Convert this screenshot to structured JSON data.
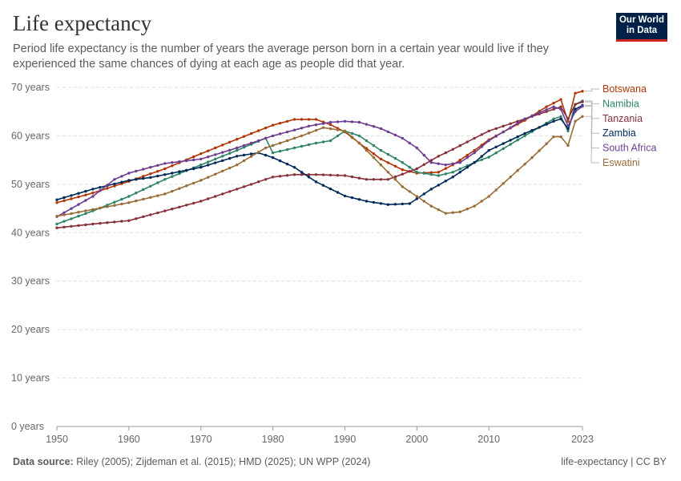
{
  "header": {
    "title": "Life expectancy",
    "subtitle": "Period life expectancy is the number of years the average person born in a certain year would live if they experienced the same chances of dying at each age as people did that year."
  },
  "logo": {
    "line1": "Our World",
    "line2": "in Data"
  },
  "footer": {
    "source_label": "Data source:",
    "source_text": " Riley (2005); Zijdeman et al. (2015); HMD (2025); UN WPP (2024)",
    "right_text": "life-expectancy | CC BY"
  },
  "chart_data": {
    "type": "line",
    "title": "Life expectancy",
    "xlabel": "",
    "ylabel": "",
    "xlim": [
      1950,
      2023
    ],
    "ylim": [
      0,
      70
    ],
    "x_ticks": [
      "1950",
      "1960",
      "1970",
      "1980",
      "1990",
      "2000",
      "2010",
      "2023"
    ],
    "y_ticks": [
      "0 years",
      "10 years",
      "20 years",
      "30 years",
      "40 years",
      "50 years",
      "60 years",
      "70 years"
    ],
    "grid": true,
    "legend_placement": "right",
    "series": [
      {
        "name": "Botswana",
        "color": "#b13507",
        "points": [
          [
            1950,
            46.2
          ],
          [
            1955,
            48.2
          ],
          [
            1960,
            50.6
          ],
          [
            1965,
            53.2
          ],
          [
            1970,
            56.3
          ],
          [
            1975,
            59.3
          ],
          [
            1980,
            62.2
          ],
          [
            1983,
            63.4
          ],
          [
            1986,
            63.4
          ],
          [
            1988,
            62.3
          ],
          [
            1990,
            60.8
          ],
          [
            1992,
            58.5
          ],
          [
            1995,
            55.2
          ],
          [
            1998,
            53.0
          ],
          [
            2000,
            52.3
          ],
          [
            2003,
            52.5
          ],
          [
            2005,
            54.0
          ],
          [
            2008,
            57.0
          ],
          [
            2010,
            59.2
          ],
          [
            2015,
            63.2
          ],
          [
            2018,
            66.0
          ],
          [
            2020,
            67.5
          ],
          [
            2021,
            63.0
          ],
          [
            2022,
            68.8
          ],
          [
            2023,
            69.2
          ]
        ]
      },
      {
        "name": "Namibia",
        "color": "#2c8465",
        "points": [
          [
            1950,
            41.8
          ],
          [
            1955,
            44.5
          ],
          [
            1960,
            47.5
          ],
          [
            1965,
            51.0
          ],
          [
            1970,
            54.0
          ],
          [
            1975,
            57.0
          ],
          [
            1979,
            59.5
          ],
          [
            1980,
            56.5
          ],
          [
            1983,
            57.5
          ],
          [
            1986,
            58.5
          ],
          [
            1988,
            59.0
          ],
          [
            1990,
            61.0
          ],
          [
            1992,
            60.0
          ],
          [
            1995,
            57.0
          ],
          [
            1998,
            54.5
          ],
          [
            2000,
            52.5
          ],
          [
            2003,
            51.8
          ],
          [
            2005,
            52.5
          ],
          [
            2008,
            54.5
          ],
          [
            2010,
            55.6
          ],
          [
            2015,
            60.0
          ],
          [
            2019,
            63.5
          ],
          [
            2020,
            64.0
          ],
          [
            2021,
            61.0
          ],
          [
            2022,
            66.5
          ],
          [
            2023,
            67.2
          ]
        ]
      },
      {
        "name": "Tanzania",
        "color": "#883039",
        "points": [
          [
            1950,
            41.0
          ],
          [
            1955,
            41.8
          ],
          [
            1960,
            42.5
          ],
          [
            1965,
            44.5
          ],
          [
            1970,
            46.5
          ],
          [
            1975,
            49.0
          ],
          [
            1980,
            51.5
          ],
          [
            1983,
            52.0
          ],
          [
            1986,
            52.0
          ],
          [
            1990,
            51.8
          ],
          [
            1993,
            51.0
          ],
          [
            1996,
            51.0
          ],
          [
            2000,
            53.2
          ],
          [
            2003,
            55.8
          ],
          [
            2005,
            57.2
          ],
          [
            2008,
            59.5
          ],
          [
            2010,
            61.0
          ],
          [
            2015,
            63.5
          ],
          [
            2018,
            65.0
          ],
          [
            2020,
            66.0
          ],
          [
            2021,
            63.5
          ],
          [
            2022,
            66.5
          ],
          [
            2023,
            67.0
          ]
        ]
      },
      {
        "name": "Zambia",
        "color": "#00295b",
        "points": [
          [
            1950,
            46.8
          ],
          [
            1955,
            49.0
          ],
          [
            1960,
            50.8
          ],
          [
            1963,
            51.4
          ],
          [
            1965,
            52.0
          ],
          [
            1970,
            53.5
          ],
          [
            1975,
            55.8
          ],
          [
            1978,
            56.5
          ],
          [
            1980,
            55.5
          ],
          [
            1983,
            53.5
          ],
          [
            1986,
            50.5
          ],
          [
            1990,
            47.6
          ],
          [
            1993,
            46.5
          ],
          [
            1996,
            45.8
          ],
          [
            1999,
            46.0
          ],
          [
            2002,
            49.0
          ],
          [
            2005,
            51.5
          ],
          [
            2008,
            54.5
          ],
          [
            2010,
            57.0
          ],
          [
            2015,
            60.5
          ],
          [
            2019,
            63.0
          ],
          [
            2020,
            63.5
          ],
          [
            2021,
            61.5
          ],
          [
            2022,
            65.5
          ],
          [
            2023,
            66.3
          ]
        ]
      },
      {
        "name": "South Africa",
        "color": "#6d3e91",
        "points": [
          [
            1950,
            43.3
          ],
          [
            1955,
            47.5
          ],
          [
            1958,
            51.0
          ],
          [
            1960,
            52.3
          ],
          [
            1965,
            54.3
          ],
          [
            1970,
            55.2
          ],
          [
            1975,
            57.5
          ],
          [
            1980,
            60.0
          ],
          [
            1985,
            62.0
          ],
          [
            1988,
            62.8
          ],
          [
            1990,
            63.0
          ],
          [
            1992,
            62.8
          ],
          [
            1995,
            61.5
          ],
          [
            1998,
            59.5
          ],
          [
            2000,
            57.5
          ],
          [
            2002,
            54.5
          ],
          [
            2004,
            54.0
          ],
          [
            2006,
            54.5
          ],
          [
            2008,
            56.5
          ],
          [
            2010,
            59.0
          ],
          [
            2015,
            63.5
          ],
          [
            2019,
            66.0
          ],
          [
            2020,
            65.5
          ],
          [
            2021,
            62.0
          ],
          [
            2022,
            65.0
          ],
          [
            2023,
            66.1
          ]
        ]
      },
      {
        "name": "Eswatini",
        "color": "#996d39",
        "points": [
          [
            1950,
            43.4
          ],
          [
            1955,
            44.8
          ],
          [
            1960,
            46.2
          ],
          [
            1965,
            48.0
          ],
          [
            1970,
            50.8
          ],
          [
            1975,
            54.0
          ],
          [
            1979,
            57.5
          ],
          [
            1982,
            59.0
          ],
          [
            1984,
            60.0
          ],
          [
            1987,
            61.7
          ],
          [
            1990,
            61.0
          ],
          [
            1992,
            58.5
          ],
          [
            1995,
            54.0
          ],
          [
            1998,
            49.5
          ],
          [
            2000,
            47.5
          ],
          [
            2002,
            45.5
          ],
          [
            2004,
            44.0
          ],
          [
            2006,
            44.3
          ],
          [
            2008,
            45.5
          ],
          [
            2010,
            47.5
          ],
          [
            2013,
            51.5
          ],
          [
            2016,
            55.5
          ],
          [
            2019,
            59.8
          ],
          [
            2020,
            59.8
          ],
          [
            2021,
            58.0
          ],
          [
            2022,
            63.0
          ],
          [
            2023,
            64.0
          ]
        ]
      }
    ]
  }
}
